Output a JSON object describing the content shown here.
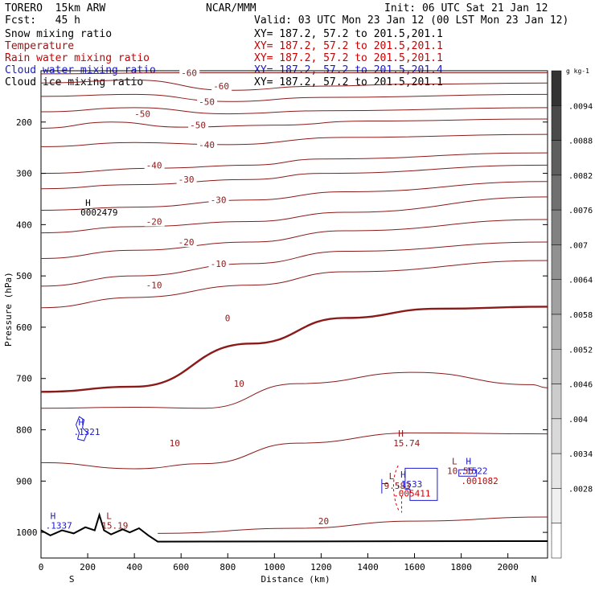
{
  "header": {
    "model": "TORERO  15km ARW",
    "org": "NCAR/MMM",
    "init": "Init: 06 UTC Sat 21 Jan 12",
    "fcst": "Fcst:   45 h",
    "valid": "Valid: 03 UTC Mon 23 Jan 12 (00 LST Mon 23 Jan 12)"
  },
  "colors": {
    "temperature": "#8b1a1a",
    "rain": "#cc0000",
    "cloud_water": "#1a1acc",
    "black": "#000000"
  },
  "legend": [
    {
      "field": "Snow mixing ratio",
      "xy": "XY= 187.2, 57.2 to 201.5,201.1",
      "color": "#000000"
    },
    {
      "field": "Temperature",
      "xy": "XY= 187.2, 57.2 to 201.5,201.1",
      "color": "#8b1a1a"
    },
    {
      "field": "Rain water mixing ratio",
      "xy": "XY= 187.2, 57.2 to 201.5,201.1",
      "color": "#cc0000"
    },
    {
      "field": "Cloud water mixing ratio",
      "xy": "XY= 187.2, 57.2 to 201.5,201.4",
      "color": "#1a1acc"
    },
    {
      "field": "Cloud ice mixing ratio",
      "xy": "XY= 187.2, 57.2 to 201.5,201.1",
      "color": "#000000"
    }
  ],
  "chart_data": {
    "type": "contour",
    "xlabel": "Distance (km)",
    "ylabel": "Pressure (hPa)",
    "x_ticks": [
      0,
      200,
      400,
      600,
      800,
      1000,
      1200,
      1400,
      1600,
      1800,
      2000
    ],
    "y_ticks": [
      200,
      300,
      400,
      500,
      600,
      700,
      800,
      900,
      1000
    ],
    "xlim": [
      0,
      2170
    ],
    "ylim": [
      1050,
      100
    ],
    "x_end_labels": {
      "left": "S",
      "right": "N"
    },
    "colorbar": {
      "unit": "g kg-1",
      "ticks": [
        ".0094",
        ".0088",
        ".0082",
        ".0076",
        ".007",
        ".0064",
        ".0058",
        ".0052",
        ".0046",
        ".004",
        ".0034",
        ".0028"
      ]
    },
    "temperature_contours": [
      {
        "label": "-60",
        "points": [
          [
            0,
            106
          ],
          [
            600,
            104
          ],
          [
            1200,
            104
          ],
          [
            2170,
            104
          ]
        ]
      },
      {
        "label": "-60",
        "points": [
          [
            0,
            124
          ],
          [
            400,
            118
          ],
          [
            800,
            138
          ],
          [
            1200,
            130
          ],
          [
            1600,
            126
          ],
          [
            2170,
            124
          ]
        ]
      },
      {
        "label": "-50",
        "points": [
          [
            0,
            150
          ],
          [
            400,
            146
          ],
          [
            800,
            160
          ],
          [
            1200,
            152
          ],
          [
            2170,
            146
          ]
        ]
      },
      {
        "label": "-50",
        "points": [
          [
            0,
            180
          ],
          [
            400,
            172
          ],
          [
            800,
            184
          ],
          [
            1200,
            178
          ],
          [
            2170,
            172
          ]
        ]
      },
      {
        "label": "-50",
        "points": [
          [
            0,
            212
          ],
          [
            300,
            200
          ],
          [
            600,
            210
          ],
          [
            1000,
            206
          ],
          [
            1400,
            198
          ],
          [
            2170,
            194
          ]
        ]
      },
      {
        "label": "-40",
        "points": [
          [
            0,
            248
          ],
          [
            400,
            240
          ],
          [
            800,
            244
          ],
          [
            1300,
            230
          ],
          [
            2170,
            224
          ]
        ]
      },
      {
        "label": "-40",
        "points": [
          [
            0,
            300
          ],
          [
            500,
            290
          ],
          [
            900,
            284
          ],
          [
            1200,
            272
          ],
          [
            2170,
            260
          ]
        ]
      },
      {
        "label": "-30",
        "points": [
          [
            0,
            330
          ],
          [
            400,
            322
          ],
          [
            900,
            312
          ],
          [
            1200,
            300
          ],
          [
            2170,
            284
          ]
        ]
      },
      {
        "label": "-30",
        "points": [
          [
            0,
            372
          ],
          [
            400,
            366
          ],
          [
            900,
            352
          ],
          [
            1300,
            336
          ],
          [
            2170,
            316
          ]
        ]
      },
      {
        "label": "-20",
        "points": [
          [
            0,
            416
          ],
          [
            400,
            404
          ],
          [
            900,
            394
          ],
          [
            1300,
            376
          ],
          [
            2170,
            346
          ]
        ]
      },
      {
        "label": "-20",
        "points": [
          [
            0,
            466
          ],
          [
            400,
            450
          ],
          [
            900,
            434
          ],
          [
            1300,
            412
          ],
          [
            2170,
            390
          ]
        ]
      },
      {
        "label": "-10",
        "points": [
          [
            0,
            520
          ],
          [
            400,
            500
          ],
          [
            900,
            476
          ],
          [
            1300,
            452
          ],
          [
            2170,
            434
          ]
        ]
      },
      {
        "label": "-10",
        "points": [
          [
            0,
            562
          ],
          [
            400,
            542
          ],
          [
            900,
            518
          ],
          [
            1300,
            492
          ],
          [
            2170,
            470
          ]
        ]
      },
      {
        "label": "0",
        "points": [
          [
            0,
            726
          ],
          [
            400,
            716
          ],
          [
            900,
            632
          ],
          [
            1300,
            582
          ],
          [
            1700,
            564
          ],
          [
            2170,
            560
          ]
        ]
      },
      {
        "label": "10",
        "points": [
          [
            0,
            758
          ],
          [
            400,
            756
          ],
          [
            700,
            758
          ],
          [
            1100,
            710
          ],
          [
            1600,
            688
          ],
          [
            2100,
            712
          ],
          [
            2170,
            718
          ]
        ]
      },
      {
        "label": "10",
        "points": [
          [
            0,
            864
          ],
          [
            400,
            876
          ],
          [
            700,
            866
          ],
          [
            1100,
            826
          ],
          [
            1600,
            806
          ],
          [
            2170,
            808
          ]
        ]
      },
      {
        "label": "20",
        "points": [
          [
            500,
            1002
          ],
          [
            1100,
            992
          ],
          [
            1600,
            978
          ],
          [
            2170,
            970
          ]
        ]
      }
    ],
    "centers": [
      {
        "label": "H",
        "value": "0002479",
        "x": 190,
        "p": 382,
        "color": "#000000"
      },
      {
        "label": "H",
        "value": ".1321",
        "x": 160,
        "p": 810,
        "color": "#1a1acc"
      },
      {
        "label": "H",
        "value": "15.74",
        "x": 1530,
        "p": 832,
        "color": "#8b1a1a"
      },
      {
        "label": "H",
        "value": ".1337",
        "x": 40,
        "p": 993,
        "color": "#1a1acc"
      },
      {
        "label": "L",
        "value": "15.19",
        "x": 280,
        "p": 993,
        "color": "#8b1a1a"
      },
      {
        "label": "L",
        "value": "9.583",
        "x": 1490,
        "p": 915,
        "color": "#8b1a1a"
      },
      {
        "label": "H",
        "value": ".1533",
        "x": 1540,
        "p": 912,
        "color": "#1a1acc"
      },
      {
        "label": "",
        "value": ".005411",
        "x": 1530,
        "p": 930,
        "color": "#cc0000"
      },
      {
        "label": "L",
        "value": "10.55",
        "x": 1760,
        "p": 886,
        "color": "#8b1a1a"
      },
      {
        "label": "H",
        "value": ".1522",
        "x": 1820,
        "p": 886,
        "color": "#1a1acc"
      },
      {
        "label": "",
        "value": ".001082",
        "x": 1820,
        "p": 906,
        "color": "#cc0000"
      }
    ]
  }
}
